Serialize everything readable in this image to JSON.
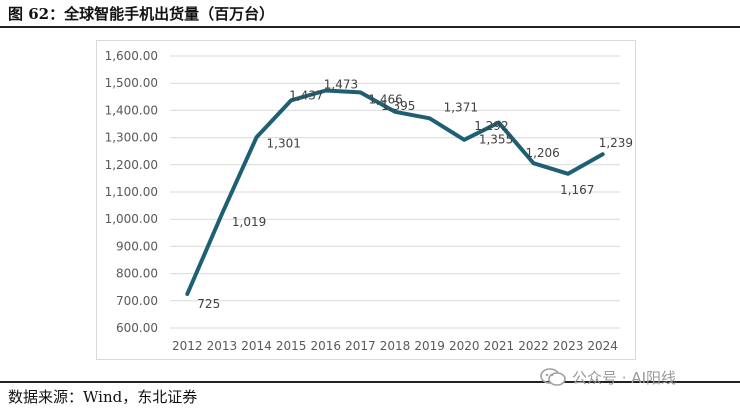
{
  "figure": {
    "title": "图 62：全球智能手机出货量（百万台）",
    "source": "数据来源：Wind，东北证券",
    "watermark": "公众号 · AI阳线"
  },
  "chart_data": {
    "type": "line",
    "title": "",
    "xlabel": "",
    "ylabel": "",
    "categories": [
      "2012",
      "2013",
      "2014",
      "2015",
      "2016",
      "2017",
      "2018",
      "2019",
      "2020",
      "2021",
      "2022",
      "2023",
      "2024"
    ],
    "series": [
      {
        "values": [
          725,
          1019,
          1301,
          1437,
          1473,
          1466,
          1395,
          1371,
          1292,
          1355,
          1206,
          1167,
          1239
        ],
        "data_labels": [
          "725",
          "1,019",
          "1,301",
          "1,437",
          "1,473",
          "1,466",
          "1,395",
          "1,371",
          "1,292",
          "1,355",
          "1,206",
          "1,167",
          "1,239"
        ],
        "color": "#1f5f73"
      }
    ],
    "ylim": [
      600,
      1600
    ],
    "yticks": [
      600,
      700,
      800,
      900,
      1000,
      1100,
      1200,
      1300,
      1400,
      1500,
      1600
    ],
    "ytick_labels": [
      "600.00",
      "700.00",
      "800.00",
      "900.00",
      "1,000.00",
      "1,100.00",
      "1,200.00",
      "1,300.00",
      "1,400.00",
      "1,500.00",
      "1,600.00"
    ],
    "grid": true,
    "legend": "none"
  }
}
